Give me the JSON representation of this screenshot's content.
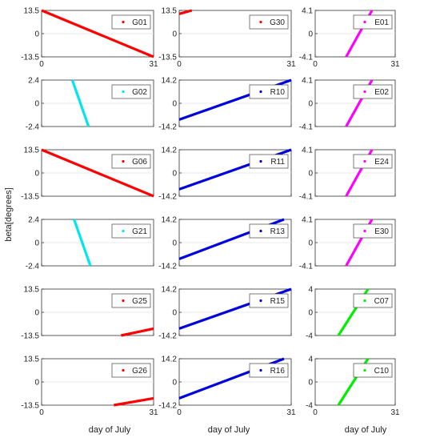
{
  "figure": {
    "ylabel": "beta[degrees]",
    "xlabel": "day of July"
  },
  "chart_data": [
    {
      "type": "line",
      "legend": "G01",
      "color": "#ff0000",
      "xlim": [
        0,
        31
      ],
      "ylim": [
        -13.5,
        13.5
      ],
      "xticks": [
        "0",
        "31"
      ],
      "yticks": [
        "13.5",
        "0",
        "-13.5"
      ],
      "x": [
        0,
        31
      ],
      "y": [
        13.5,
        -13.5
      ]
    },
    {
      "type": "line",
      "legend": "G30",
      "color": "#ff0000",
      "xlim": [
        0,
        31
      ],
      "ylim": [
        -13.5,
        13.5
      ],
      "xticks": [
        "0",
        "31"
      ],
      "yticks": [
        "13.5",
        "0",
        "-13.5"
      ],
      "x": [
        0,
        3.5
      ],
      "y": [
        11.5,
        13.5
      ]
    },
    {
      "type": "line",
      "legend": "E01",
      "color": "#ff00ff",
      "xlim": [
        0,
        31
      ],
      "ylim": [
        -4.1,
        4.1
      ],
      "xticks": [
        "0",
        "31"
      ],
      "yticks": [
        "4.1",
        "0",
        "-4.1"
      ],
      "x": [
        12,
        22
      ],
      "y": [
        -4.1,
        4.1
      ]
    },
    {
      "type": "line",
      "legend": "G02",
      "color": "#00e5ee",
      "xlim": [
        0,
        31
      ],
      "ylim": [
        -2.4,
        2.4
      ],
      "xticks": [
        "",
        ""
      ],
      "yticks": [
        "2.4",
        "0",
        "-2.4"
      ],
      "x": [
        8.5,
        13
      ],
      "y": [
        2.4,
        -2.4
      ]
    },
    {
      "type": "line",
      "legend": "R10",
      "color": "#0000dd",
      "xlim": [
        0,
        31
      ],
      "ylim": [
        -14.2,
        14.2
      ],
      "xticks": [
        "",
        ""
      ],
      "yticks": [
        "14.2",
        "0",
        "-14.2"
      ],
      "x": [
        0,
        31
      ],
      "y": [
        -10,
        14.2
      ]
    },
    {
      "type": "line",
      "legend": "E02",
      "color": "#ff00ff",
      "xlim": [
        0,
        31
      ],
      "ylim": [
        -4.1,
        4.1
      ],
      "xticks": [
        "",
        ""
      ],
      "yticks": [
        "4.1",
        "0",
        "-4.1"
      ],
      "x": [
        12,
        22
      ],
      "y": [
        -4.1,
        4.1
      ]
    },
    {
      "type": "line",
      "legend": "G06",
      "color": "#ff0000",
      "xlim": [
        0,
        31
      ],
      "ylim": [
        -13.5,
        13.5
      ],
      "xticks": [
        "",
        ""
      ],
      "yticks": [
        "13.5",
        "0",
        "-13.5"
      ],
      "x": [
        0,
        31
      ],
      "y": [
        13.5,
        -13.5
      ]
    },
    {
      "type": "line",
      "legend": "R11",
      "color": "#0000dd",
      "xlim": [
        0,
        31
      ],
      "ylim": [
        -14.2,
        14.2
      ],
      "xticks": [
        "",
        ""
      ],
      "yticks": [
        "14.2",
        "0",
        "-14.2"
      ],
      "x": [
        0,
        31
      ],
      "y": [
        -10,
        14.2
      ]
    },
    {
      "type": "line",
      "legend": "E24",
      "color": "#ff00ff",
      "xlim": [
        0,
        31
      ],
      "ylim": [
        -4.1,
        4.1
      ],
      "xticks": [
        "",
        ""
      ],
      "yticks": [
        "4.1",
        "0",
        "-4.1"
      ],
      "x": [
        12,
        22
      ],
      "y": [
        -4.1,
        4.1
      ]
    },
    {
      "type": "line",
      "legend": "G21",
      "color": "#00e5ee",
      "xlim": [
        0,
        31
      ],
      "ylim": [
        -2.4,
        2.4
      ],
      "xticks": [
        "",
        ""
      ],
      "yticks": [
        "2.4",
        "0",
        "-2.4"
      ],
      "x": [
        9,
        13.5
      ],
      "y": [
        2.4,
        -2.4
      ]
    },
    {
      "type": "line",
      "legend": "R13",
      "color": "#0000dd",
      "xlim": [
        0,
        31
      ],
      "ylim": [
        -14.2,
        14.2
      ],
      "xticks": [
        "",
        ""
      ],
      "yticks": [
        "14.2",
        "0",
        "-14.2"
      ],
      "x": [
        0,
        29
      ],
      "y": [
        -10,
        14.2
      ]
    },
    {
      "type": "line",
      "legend": "E30",
      "color": "#ff00ff",
      "xlim": [
        0,
        31
      ],
      "ylim": [
        -4.1,
        4.1
      ],
      "xticks": [
        "",
        ""
      ],
      "yticks": [
        "4.1",
        "0",
        "-4.1"
      ],
      "x": [
        12,
        22
      ],
      "y": [
        -4.1,
        4.1
      ]
    },
    {
      "type": "line",
      "legend": "G25",
      "color": "#ff0000",
      "xlim": [
        0,
        31
      ],
      "ylim": [
        -13.5,
        13.5
      ],
      "xticks": [
        "",
        ""
      ],
      "yticks": [
        "13.5",
        "0",
        "-13.5"
      ],
      "x": [
        22,
        31
      ],
      "y": [
        -13.5,
        -9.5
      ]
    },
    {
      "type": "line",
      "legend": "R15",
      "color": "#0000dd",
      "xlim": [
        0,
        31
      ],
      "ylim": [
        -14.2,
        14.2
      ],
      "xticks": [
        "",
        ""
      ],
      "yticks": [
        "14.2",
        "0",
        "-14.2"
      ],
      "x": [
        0,
        31
      ],
      "y": [
        -10,
        14.2
      ]
    },
    {
      "type": "line",
      "legend": "C07",
      "color": "#00ee00",
      "xlim": [
        0,
        31
      ],
      "ylim": [
        -4,
        4
      ],
      "xticks": [
        "",
        ""
      ],
      "yticks": [
        "4",
        "0",
        "-4"
      ],
      "x": [
        9,
        20.5
      ],
      "y": [
        -4,
        4
      ]
    },
    {
      "type": "line",
      "legend": "G26",
      "color": "#ff0000",
      "xlim": [
        0,
        31
      ],
      "ylim": [
        -13.5,
        13.5
      ],
      "xticks": [
        "0",
        "31"
      ],
      "yticks": [
        "13.5",
        "0",
        "-13.5"
      ],
      "x": [
        20,
        31
      ],
      "y": [
        -13.5,
        -9.5
      ]
    },
    {
      "type": "line",
      "legend": "R16",
      "color": "#0000dd",
      "xlim": [
        0,
        31
      ],
      "ylim": [
        -14.2,
        14.2
      ],
      "xticks": [
        "0",
        "31"
      ],
      "yticks": [
        "14.2",
        "0",
        "-14.2"
      ],
      "x": [
        0,
        29
      ],
      "y": [
        -10,
        14.2
      ]
    },
    {
      "type": "line",
      "legend": "C10",
      "color": "#00ee00",
      "xlim": [
        0,
        31
      ],
      "ylim": [
        -4,
        4
      ],
      "xticks": [
        "0",
        "31"
      ],
      "yticks": [
        "4",
        "0",
        "-4"
      ],
      "x": [
        9,
        20.5
      ],
      "y": [
        -4,
        4
      ]
    }
  ]
}
